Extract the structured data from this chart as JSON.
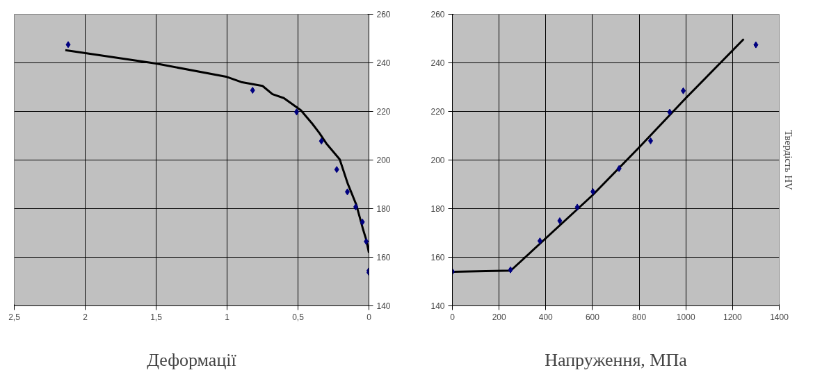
{
  "chart_data": [
    {
      "type": "scatter",
      "xlabel": "Деформації",
      "xlim": [
        2.5,
        0
      ],
      "xticks": [
        {
          "value": 2.5,
          "label": "2,5"
        },
        2,
        {
          "value": 1.5,
          "label": "1,5"
        },
        1,
        {
          "value": 0.5,
          "label": "0,5"
        },
        0
      ],
      "ylim": [
        140,
        260
      ],
      "yticks": [
        140,
        160,
        180,
        200,
        220,
        240,
        260
      ],
      "grid": true,
      "line_style": "solid",
      "series": [
        {
          "marker": "diamond",
          "color": "#000080",
          "x": [
            2.12,
            0.82,
            0.51,
            0.335,
            0.227,
            0.152,
            0.093,
            0.046,
            0.019,
            0,
            0
          ],
          "values": [
            247.5,
            228.7,
            219.8,
            207.8,
            196.1,
            186.9,
            180.7,
            174.5,
            166.5,
            154.5,
            153.7
          ]
        },
        {
          "type": "line",
          "marker": "none",
          "color": "#000000",
          "x": [
            2.14,
            1.5,
            1.0,
            0.9,
            0.75,
            0.68,
            0.6,
            0.48,
            0.4,
            0.35,
            0.3,
            0.206,
            0.15,
            0.089,
            0.043,
            0.02,
            0
          ],
          "values": [
            245.2,
            239.7,
            234.2,
            232.1,
            230.5,
            227.1,
            225.5,
            220.5,
            215.0,
            211.2,
            206.8,
            200.3,
            190.4,
            181.6,
            171.8,
            167.4,
            161.9
          ]
        }
      ]
    },
    {
      "type": "scatter",
      "xlabel": "Напруження, МПа",
      "ylabel": "Твердість HV",
      "xlim": [
        0,
        1400
      ],
      "xticks": [
        0,
        200,
        400,
        600,
        800,
        1000,
        1200,
        1400
      ],
      "ylim": [
        140,
        260
      ],
      "yticks": [
        140,
        160,
        180,
        200,
        220,
        240,
        260
      ],
      "grid": true,
      "line_style": "solid",
      "series": [
        {
          "marker": "diamond",
          "color": "#000080",
          "x": [
            0,
            249,
            375,
            460,
            535,
            602,
            714,
            849,
            931,
            989,
            1300
          ],
          "values": [
            154.1,
            154.8,
            166.7,
            175.0,
            180.6,
            187.0,
            196.5,
            207.9,
            219.7,
            228.5,
            247.4
          ]
        },
        {
          "type": "line",
          "marker": "none",
          "color": "#000000",
          "x": [
            0,
            250,
            600,
            800,
            1000,
            1248
          ],
          "values": [
            154,
            154.5,
            185.5,
            205.2,
            225.5,
            249.8
          ]
        }
      ]
    }
  ]
}
